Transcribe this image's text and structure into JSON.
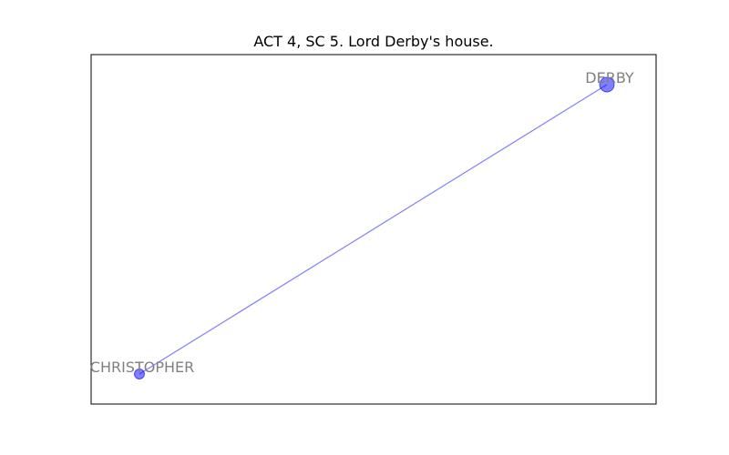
{
  "title": "ACT 4, SC 5. Lord Derby's house.",
  "colors": {
    "node": "#0000ff",
    "edge": "#0000ff",
    "label": "#808080",
    "frame": "#000000"
  },
  "graph": {
    "nodes": [
      {
        "id": "DERBY",
        "label": "DERBY",
        "size": "large"
      },
      {
        "id": "CHRISTOPHER",
        "label": "CHRISTOPHER",
        "size": "small"
      }
    ],
    "edges": [
      {
        "source": "CHRISTOPHER",
        "target": "DERBY"
      }
    ]
  }
}
